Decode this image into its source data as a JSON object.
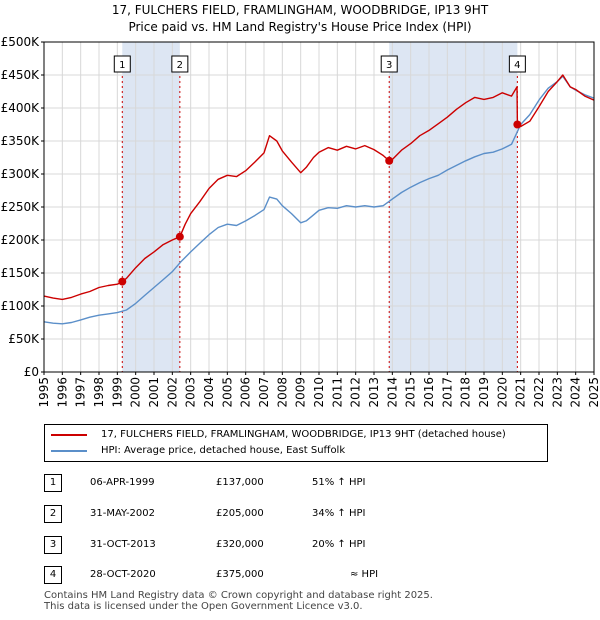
{
  "title_line1": "17, FULCHERS FIELD, FRAMLINGHAM, WOODBRIDGE, IP13 9HT",
  "title_line2": "Price paid vs. HM Land Registry's House Price Index (HPI)",
  "colors": {
    "property": "#cc0000",
    "hpi": "#5b8fc9",
    "shade": "#dde6f3",
    "grid": "#d8d8d8",
    "marker": "#cc0000"
  },
  "chart_data": {
    "type": "line",
    "xlim": [
      1995,
      2025
    ],
    "ylim": [
      0,
      500000
    ],
    "yticks": [
      0,
      50000,
      100000,
      150000,
      200000,
      250000,
      300000,
      350000,
      400000,
      450000,
      500000
    ],
    "ytick_labels": [
      "£0",
      "£50K",
      "£100K",
      "£150K",
      "£200K",
      "£250K",
      "£300K",
      "£350K",
      "£400K",
      "£450K",
      "£500K"
    ],
    "xticks": [
      1995,
      1996,
      1997,
      1998,
      1999,
      2000,
      2001,
      2002,
      2003,
      2004,
      2005,
      2006,
      2007,
      2008,
      2009,
      2010,
      2011,
      2012,
      2013,
      2014,
      2015,
      2016,
      2017,
      2018,
      2019,
      2020,
      2021,
      2022,
      2023,
      2024,
      2025
    ],
    "xtick_labels": [
      "1995",
      "1996",
      "1997",
      "1998",
      "1999",
      "2000",
      "2001",
      "2002",
      "2003",
      "2004",
      "2005",
      "2006",
      "2007",
      "2008",
      "2009",
      "2010",
      "2011",
      "2012",
      "2013",
      "2014",
      "2015",
      "2016",
      "2017",
      "2018",
      "2019",
      "2020",
      "2021",
      "2022",
      "2023",
      "2024",
      "2025"
    ],
    "shaded_ranges": [
      [
        1999.27,
        2002.41
      ],
      [
        2013.83,
        2020.82
      ]
    ],
    "series": [
      {
        "name": "17, FULCHERS FIELD, FRAMLINGHAM, WOODBRIDGE, IP13 9HT (detached house)",
        "x": [
          1995,
          1995.5,
          1996,
          1996.5,
          1997,
          1997.5,
          1998,
          1998.5,
          1999,
          1999.27,
          1999.5,
          2000,
          2000.5,
          2001,
          2001.5,
          2002,
          2002.41,
          2002.7,
          2003,
          2003.5,
          2004,
          2004.5,
          2005,
          2005.5,
          2006,
          2006.5,
          2007,
          2007.3,
          2007.7,
          2008,
          2008.5,
          2009,
          2009.3,
          2009.7,
          2010,
          2010.5,
          2011,
          2011.5,
          2012,
          2012.5,
          2013,
          2013.5,
          2013.83,
          2014,
          2014.5,
          2015,
          2015.5,
          2016,
          2016.5,
          2017,
          2017.5,
          2018,
          2018.5,
          2019,
          2019.5,
          2020,
          2020.5,
          2020.8,
          2020.82,
          2021,
          2021.5,
          2022,
          2022.5,
          2023,
          2023.3,
          2023.7,
          2024,
          2024.5,
          2025
        ],
        "y": [
          115000,
          112000,
          110000,
          113000,
          118000,
          122000,
          128000,
          131000,
          133000,
          137000,
          142000,
          158000,
          172000,
          182000,
          193000,
          200000,
          205000,
          224000,
          240000,
          258000,
          278000,
          292000,
          298000,
          296000,
          305000,
          318000,
          332000,
          358000,
          350000,
          335000,
          318000,
          302000,
          310000,
          325000,
          333000,
          340000,
          336000,
          342000,
          338000,
          343000,
          337000,
          328000,
          320000,
          322000,
          336000,
          346000,
          358000,
          366000,
          376000,
          386000,
          398000,
          408000,
          416000,
          413000,
          416000,
          423000,
          418000,
          432000,
          375000,
          372000,
          380000,
          402000,
          425000,
          440000,
          450000,
          432000,
          428000,
          418000,
          412000
        ]
      },
      {
        "name": "HPI: Average price, detached house, East Suffolk",
        "x": [
          1995,
          1995.5,
          1996,
          1996.5,
          1997,
          1997.5,
          1998,
          1998.5,
          1999,
          1999.5,
          2000,
          2000.5,
          2001,
          2001.5,
          2002,
          2002.5,
          2003,
          2003.5,
          2004,
          2004.5,
          2005,
          2005.5,
          2006,
          2006.5,
          2007,
          2007.3,
          2007.7,
          2008,
          2008.5,
          2009,
          2009.3,
          2009.7,
          2010,
          2010.5,
          2011,
          2011.5,
          2012,
          2012.5,
          2013,
          2013.5,
          2014,
          2014.5,
          2015,
          2015.5,
          2016,
          2016.5,
          2017,
          2017.5,
          2018,
          2018.5,
          2019,
          2019.5,
          2020,
          2020.5,
          2021,
          2021.5,
          2022,
          2022.5,
          2023,
          2023.3,
          2023.7,
          2024,
          2024.5,
          2025
        ],
        "y": [
          76000,
          74000,
          73000,
          75000,
          79000,
          83000,
          86000,
          88000,
          90000,
          94000,
          104000,
          116000,
          128000,
          140000,
          152000,
          168000,
          182000,
          195000,
          208000,
          219000,
          224000,
          222000,
          229000,
          237000,
          246000,
          265000,
          262000,
          252000,
          240000,
          226000,
          229000,
          238000,
          245000,
          249000,
          248000,
          252000,
          250000,
          252000,
          250000,
          252000,
          262000,
          272000,
          280000,
          287000,
          293000,
          298000,
          306000,
          313000,
          320000,
          326000,
          331000,
          333000,
          338000,
          345000,
          375000,
          390000,
          412000,
          430000,
          440000,
          448000,
          432000,
          427000,
          420000,
          415000
        ]
      }
    ],
    "sales": [
      {
        "label": "1",
        "x": 1999.27,
        "y": 137000
      },
      {
        "label": "2",
        "x": 2002.41,
        "y": 205000
      },
      {
        "label": "3",
        "x": 2013.83,
        "y": 320000
      },
      {
        "label": "4",
        "x": 2020.82,
        "y": 375000
      }
    ]
  },
  "legend": {
    "property": "17, FULCHERS FIELD, FRAMLINGHAM, WOODBRIDGE, IP13 9HT (detached house)",
    "hpi": "HPI: Average price, detached house, East Suffolk"
  },
  "transactions": [
    {
      "num": "1",
      "date": "06-APR-1999",
      "price": "£137,000",
      "vs": "51% ↑ HPI"
    },
    {
      "num": "2",
      "date": "31-MAY-2002",
      "price": "£205,000",
      "vs": "34% ↑ HPI"
    },
    {
      "num": "3",
      "date": "31-OCT-2013",
      "price": "£320,000",
      "vs": "20% ↑ HPI"
    },
    {
      "num": "4",
      "date": "28-OCT-2020",
      "price": "£375,000",
      "vs": "≈ HPI"
    }
  ],
  "footer_line1": "Contains HM Land Registry data © Crown copyright and database right 2025.",
  "footer_line2": "This data is licensed under the Open Government Licence v3.0."
}
